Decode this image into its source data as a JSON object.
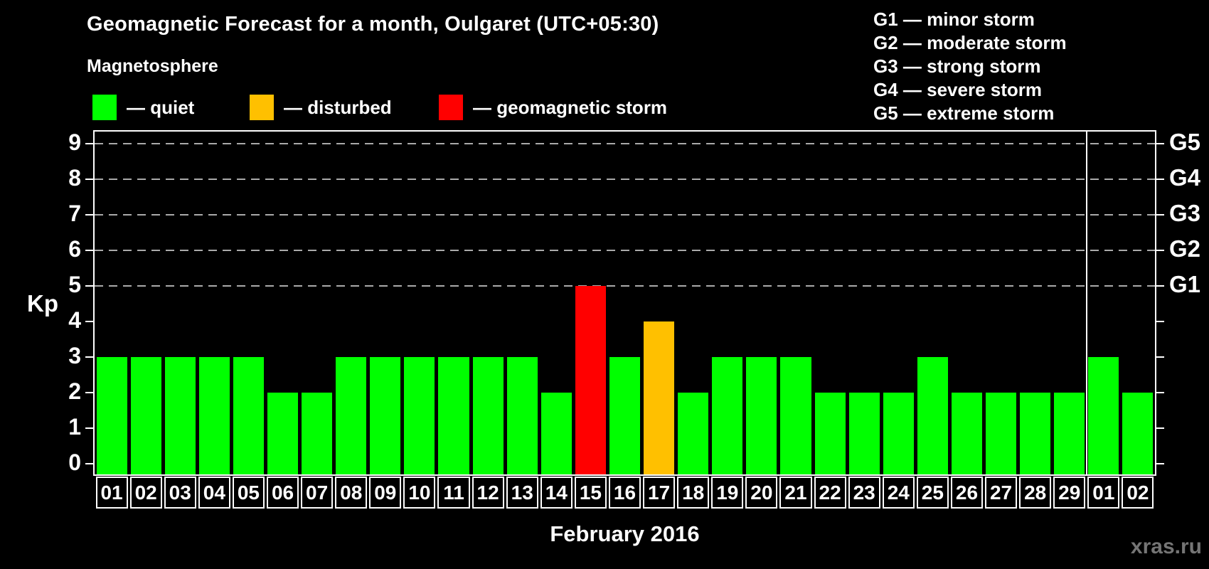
{
  "title": "Geomagnetic Forecast for a month, Oulgaret (UTC+05:30)",
  "subtitle": "Magnetosphere",
  "watermark": "xras.ru",
  "magnetosphere_legend": [
    {
      "status": "quiet",
      "label": "— quiet",
      "color": "#00ff00"
    },
    {
      "status": "disturbed",
      "label": "— disturbed",
      "color": "#ffc000"
    },
    {
      "status": "storm",
      "label": "— geomagnetic storm",
      "color": "#ff0000"
    }
  ],
  "storm_scale_legend": [
    "G1 — minor storm",
    "G2 — moderate storm",
    "G3 — strong storm",
    "G4 — severe storm",
    "G5 — extreme storm"
  ],
  "chart_data": {
    "type": "bar",
    "title": "Geomagnetic Forecast for a month, Oulgaret (UTC+05:30)",
    "xlabel": "February 2016",
    "ylabel": "Kp",
    "ylim": [
      0,
      9
    ],
    "yticks": [
      0,
      1,
      2,
      3,
      4,
      5,
      6,
      7,
      8,
      9
    ],
    "gridlines_at": [
      5,
      6,
      7,
      8,
      9
    ],
    "grid_style": "dashed horizontal gray lines at storm levels G1-G5",
    "legend_position": "top",
    "right_axis_labels": [
      {
        "kp": 5,
        "label": "G1"
      },
      {
        "kp": 6,
        "label": "G2"
      },
      {
        "kp": 7,
        "label": "G3"
      },
      {
        "kp": 8,
        "label": "G4"
      },
      {
        "kp": 9,
        "label": "G5"
      }
    ],
    "categories": [
      "01",
      "02",
      "03",
      "04",
      "05",
      "06",
      "07",
      "08",
      "09",
      "10",
      "11",
      "12",
      "13",
      "14",
      "15",
      "16",
      "17",
      "18",
      "19",
      "20",
      "21",
      "22",
      "23",
      "24",
      "25",
      "26",
      "27",
      "28",
      "29",
      "01",
      "02"
    ],
    "values": [
      3,
      3,
      3,
      3,
      3,
      2,
      2,
      3,
      3,
      3,
      3,
      3,
      3,
      2,
      5,
      3,
      4,
      2,
      3,
      3,
      3,
      2,
      2,
      2,
      3,
      2,
      2,
      2,
      2,
      3,
      2
    ],
    "statuses": [
      "quiet",
      "quiet",
      "quiet",
      "quiet",
      "quiet",
      "quiet",
      "quiet",
      "quiet",
      "quiet",
      "quiet",
      "quiet",
      "quiet",
      "quiet",
      "quiet",
      "storm",
      "quiet",
      "disturbed",
      "quiet",
      "quiet",
      "quiet",
      "quiet",
      "quiet",
      "quiet",
      "quiet",
      "quiet",
      "quiet",
      "quiet",
      "quiet",
      "quiet",
      "quiet",
      "quiet"
    ],
    "month_separator_after_index": 28,
    "colors": {
      "quiet": "#00ff00",
      "disturbed": "#ffc000",
      "storm": "#ff0000"
    },
    "axis_color": "#ffffff",
    "grid_color": "#aaaaaa",
    "background_color": "#000000"
  }
}
